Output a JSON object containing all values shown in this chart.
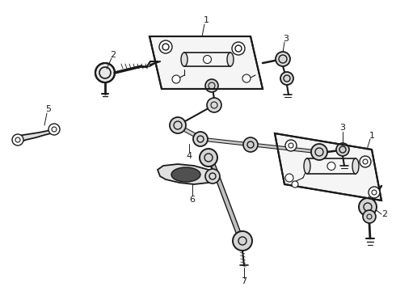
{
  "background_color": "#ffffff",
  "line_color": "#1a1a1a",
  "figure_width": 4.9,
  "figure_height": 3.6,
  "dpi": 100
}
